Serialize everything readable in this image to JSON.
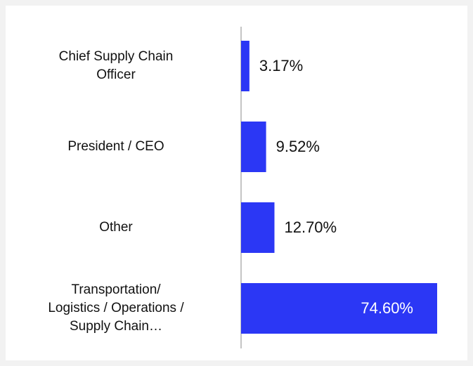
{
  "chart_data": {
    "type": "bar",
    "orientation": "horizontal",
    "categories": [
      "Chief Supply Chain\nOfficer",
      "President / CEO",
      "Other",
      "Transportation/\nLogistics / Operations /\nSupply Chain…"
    ],
    "values": [
      3.17,
      9.52,
      12.7,
      74.6
    ],
    "value_labels": [
      "3.17%",
      "9.52%",
      "12.70%",
      "74.60%"
    ],
    "color": "#2b37f5"
  }
}
